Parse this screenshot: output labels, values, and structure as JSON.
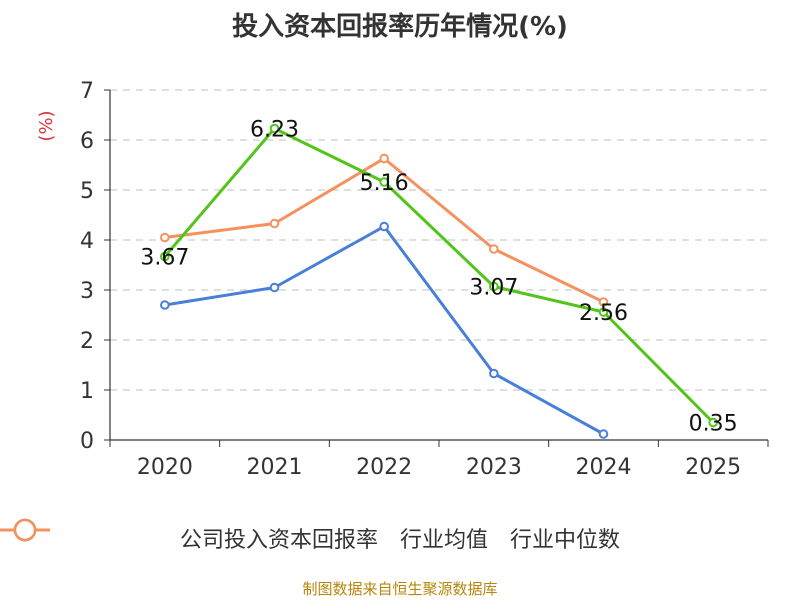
{
  "chart_data": {
    "type": "line",
    "title": "投入资本回报率历年情况(%)",
    "ylabel": "(%)",
    "xlabel": "",
    "categories": [
      "2020",
      "2021",
      "2022",
      "2023",
      "2024",
      "2025"
    ],
    "ylim": [
      0,
      7
    ],
    "yticks": [
      0,
      1,
      2,
      3,
      4,
      5,
      6,
      7
    ],
    "grid": "dashed horizontal",
    "legend_position": "bottom",
    "series": [
      {
        "name": "公司投入资本回报率",
        "color": "#52c41a",
        "values": [
          3.67,
          6.23,
          5.16,
          3.07,
          2.56,
          0.35
        ],
        "labels": [
          "3.67",
          "6.23",
          "5.16",
          "3.07",
          "2.56",
          "0.35"
        ]
      },
      {
        "name": "行业均值",
        "color": "#4a7fd9",
        "values": [
          2.7,
          3.05,
          4.27,
          1.33,
          0.12,
          null
        ]
      },
      {
        "name": "行业中位数",
        "color": "#f4915f",
        "values": [
          4.05,
          4.33,
          5.63,
          3.82,
          2.76,
          null
        ]
      }
    ]
  },
  "source": "制图数据来自恒生聚源数据库"
}
